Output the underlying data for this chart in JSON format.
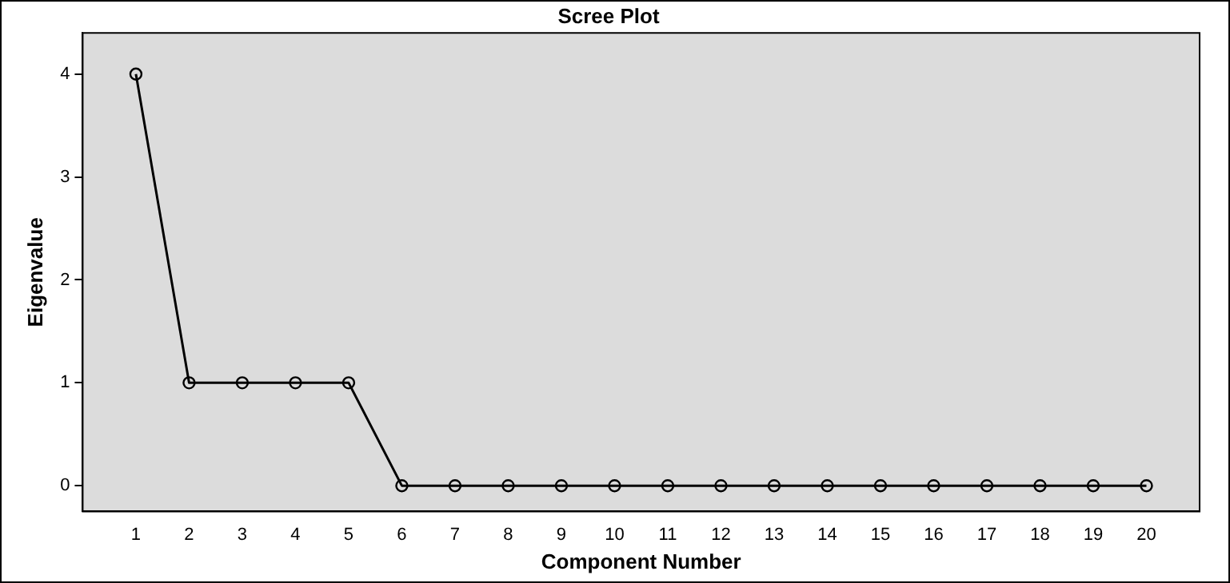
{
  "chart_data": {
    "type": "line",
    "title": "Scree Plot",
    "xlabel": "Component Number",
    "ylabel": "Eigenvalue",
    "x": [
      1,
      2,
      3,
      4,
      5,
      6,
      7,
      8,
      9,
      10,
      11,
      12,
      13,
      14,
      15,
      16,
      17,
      18,
      19,
      20
    ],
    "xlim": [
      0,
      21
    ],
    "xticks": [
      1,
      2,
      3,
      4,
      5,
      6,
      7,
      8,
      9,
      10,
      11,
      12,
      13,
      14,
      15,
      16,
      17,
      18,
      19,
      20
    ],
    "ylim": [
      -0.25,
      4.4
    ],
    "yticks": [
      0,
      1,
      2,
      3,
      4
    ],
    "series": [
      {
        "color": "#000000",
        "values": [
          4,
          1,
          1,
          1,
          1,
          0,
          0,
          0,
          0,
          0,
          0,
          0,
          0,
          0,
          0,
          0,
          0,
          0,
          0,
          0
        ]
      }
    ],
    "marker": "circle",
    "line_style": "solid",
    "grid": false,
    "legend": false
  }
}
